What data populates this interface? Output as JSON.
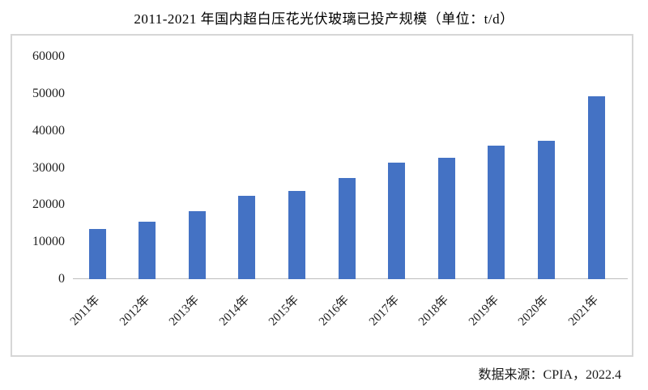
{
  "title": "2011-2021 年国内超白压花光伏玻璃已投产规模（单位：t/d）",
  "source_note": "数据来源：CPIA，2022.4",
  "colors": {
    "bar": "#4472C4",
    "axis_line": "#bdbdbd",
    "frame_border": "#d6d6d6",
    "text": "#1a1a1a",
    "background": "#ffffff"
  },
  "chart_data": {
    "type": "bar",
    "title": "2011-2021 年国内超白压花光伏玻璃已投产规模（单位：t/d）",
    "unit": "t/d",
    "categories": [
      "2011年",
      "2012年",
      "2013年",
      "2014年",
      "2015年",
      "2016年",
      "2017年",
      "2018年",
      "2019年",
      "2020年",
      "2021年"
    ],
    "values": [
      13500,
      15500,
      18300,
      22400,
      23800,
      27300,
      31500,
      32700,
      36100,
      37300,
      49300
    ],
    "xlabel": "",
    "ylabel": "",
    "ylim": [
      0,
      60000
    ],
    "yticks": [
      0,
      10000,
      20000,
      30000,
      40000,
      50000,
      60000
    ],
    "grid": false,
    "legend": "none",
    "bar_color": "#4472C4",
    "source": "数据来源：CPIA，2022.4"
  }
}
